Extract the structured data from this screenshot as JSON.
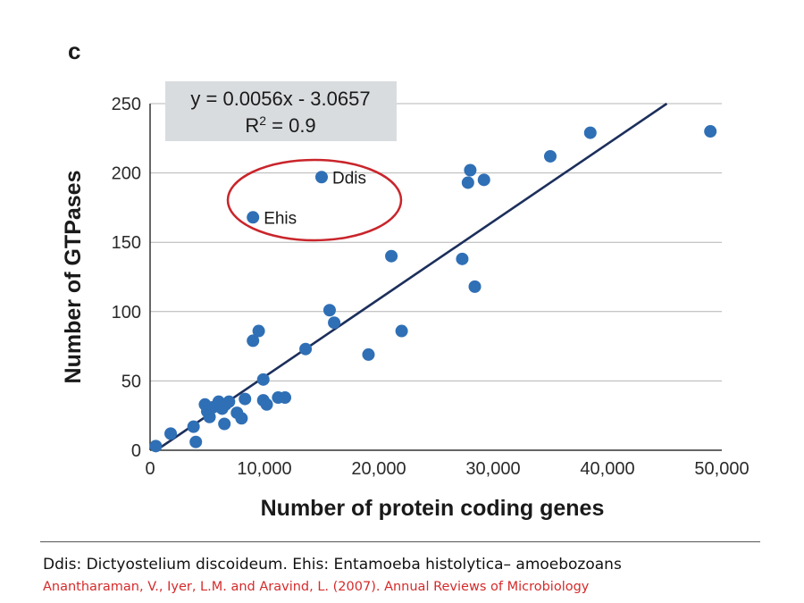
{
  "panel_label": "c",
  "footnote": "Ddis: Dictyostelium discoideum. Ehis: Entamoeba histolytica– amoebozoans",
  "citation": "Anantharaman, V., Iyer, L.M. and Aravind, L. (2007). Annual Reviews of Microbiology",
  "colors": {
    "points": "#2f6fb5",
    "trendline": "#1c2f5c",
    "highlight_ellipse": "#c9252b",
    "equation_box": "#d9dcdf",
    "citation_text": "#d52b2b"
  },
  "chart_data": {
    "type": "scatter",
    "xlabel": "Number of protein coding genes",
    "ylabel": "Number of GTPases",
    "xlim": [
      0,
      50000
    ],
    "ylim": [
      0,
      250
    ],
    "x_ticks": [
      0,
      10000,
      20000,
      30000,
      40000,
      50000
    ],
    "x_tick_labels": [
      "0",
      "10,000",
      "20,000",
      "30,000",
      "40,000",
      "50,000"
    ],
    "y_ticks": [
      0,
      50,
      100,
      150,
      200,
      250
    ],
    "y_tick_labels": [
      "0",
      "50",
      "100",
      "150",
      "200",
      "250"
    ],
    "grid": "horizontal",
    "trendline": {
      "slope": 0.0056,
      "intercept": -3.0657
    },
    "equation": {
      "line1": "y = 0.0056x - 3.0657",
      "r2_prefix": "R",
      "r2_exp": "2",
      "r2_suffix": " = 0.9"
    },
    "points": [
      {
        "x": 500,
        "y": 3
      },
      {
        "x": 1800,
        "y": 12
      },
      {
        "x": 3800,
        "y": 17
      },
      {
        "x": 4000,
        "y": 6
      },
      {
        "x": 4800,
        "y": 33
      },
      {
        "x": 5000,
        "y": 28
      },
      {
        "x": 5200,
        "y": 24
      },
      {
        "x": 5500,
        "y": 31
      },
      {
        "x": 6000,
        "y": 35
      },
      {
        "x": 6300,
        "y": 30
      },
      {
        "x": 6600,
        "y": 33
      },
      {
        "x": 6500,
        "y": 19
      },
      {
        "x": 6900,
        "y": 35
      },
      {
        "x": 7600,
        "y": 27
      },
      {
        "x": 8000,
        "y": 23
      },
      {
        "x": 8300,
        "y": 37
      },
      {
        "x": 9000,
        "y": 79
      },
      {
        "x": 9500,
        "y": 86
      },
      {
        "x": 9900,
        "y": 51
      },
      {
        "x": 9900,
        "y": 36
      },
      {
        "x": 10200,
        "y": 33
      },
      {
        "x": 11200,
        "y": 38
      },
      {
        "x": 11800,
        "y": 38
      },
      {
        "x": 13600,
        "y": 73
      },
      {
        "x": 15700,
        "y": 101
      },
      {
        "x": 16100,
        "y": 92
      },
      {
        "x": 19100,
        "y": 69
      },
      {
        "x": 21100,
        "y": 140
      },
      {
        "x": 22000,
        "y": 86
      },
      {
        "x": 27300,
        "y": 138
      },
      {
        "x": 27800,
        "y": 193
      },
      {
        "x": 28000,
        "y": 202
      },
      {
        "x": 28400,
        "y": 118
      },
      {
        "x": 29200,
        "y": 195
      },
      {
        "x": 35000,
        "y": 212
      },
      {
        "x": 38500,
        "y": 229
      },
      {
        "x": 49000,
        "y": 230
      },
      {
        "x": 9000,
        "y": 168,
        "label": "Ehis"
      },
      {
        "x": 15000,
        "y": 197,
        "label": "Ddis"
      }
    ]
  }
}
